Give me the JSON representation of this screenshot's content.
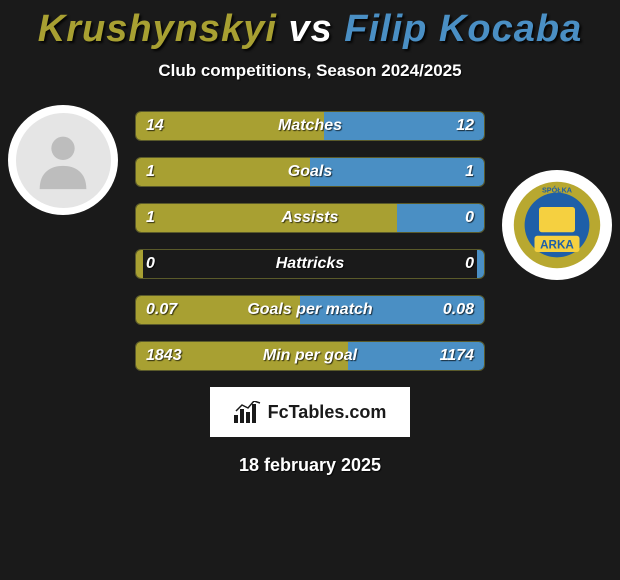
{
  "title": {
    "left": "Krushynskyi",
    "vs": " vs ",
    "right": "Filip Kocaba",
    "left_color": "#a8a032",
    "right_color": "#4a8fc4"
  },
  "subtitle": "Club competitions, Season 2024/2025",
  "colors": {
    "left_bar": "#a8a032",
    "right_bar": "#4a8fc4",
    "background": "#1a1a1a",
    "border": "#5a5a2a",
    "text": "#ffffff"
  },
  "avatars": {
    "left": {
      "type": "placeholder"
    },
    "right": {
      "type": "crest",
      "ring_color": "#b8a830",
      "inner_color": "#1e5fa8",
      "text_top": "SPÓŁKA",
      "text_main": "ARKA"
    }
  },
  "stats": [
    {
      "label": "Matches",
      "left_val": "14",
      "right_val": "12",
      "left_pct": 54,
      "right_pct": 46
    },
    {
      "label": "Goals",
      "left_val": "1",
      "right_val": "1",
      "left_pct": 50,
      "right_pct": 50
    },
    {
      "label": "Assists",
      "left_val": "1",
      "right_val": "0",
      "left_pct": 75,
      "right_pct": 25
    },
    {
      "label": "Hattricks",
      "left_val": "0",
      "right_val": "0",
      "left_pct": 2,
      "right_pct": 2
    },
    {
      "label": "Goals per match",
      "left_val": "0.07",
      "right_val": "0.08",
      "left_pct": 47,
      "right_pct": 53
    },
    {
      "label": "Min per goal",
      "left_val": "1843",
      "right_val": "1174",
      "left_pct": 61,
      "right_pct": 39
    }
  ],
  "logo": {
    "text": "FcTables.com"
  },
  "date": "18 february 2025"
}
